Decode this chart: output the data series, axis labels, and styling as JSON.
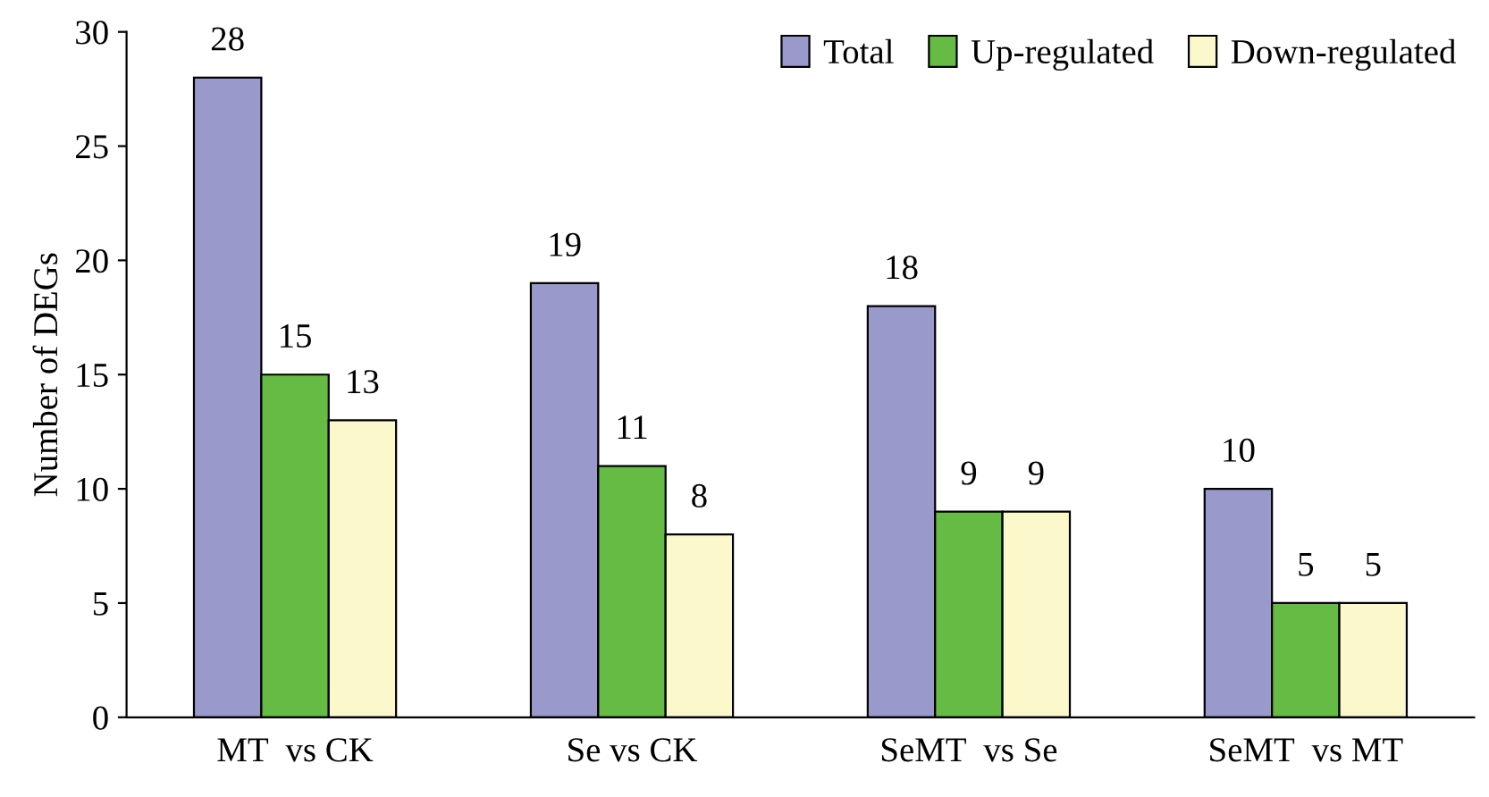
{
  "chart_data": {
    "type": "bar",
    "ylabel": "Number of DEGs",
    "categories": [
      "MT  vs CK",
      "Se vs CK",
      "SeMT  vs Se",
      "SeMT  vs MT"
    ],
    "series": [
      {
        "name": "Total",
        "color": "#9999cc",
        "values": [
          28,
          19,
          18,
          10
        ]
      },
      {
        "name": "Up-regulated",
        "color": "#66bb44",
        "values": [
          15,
          11,
          9,
          5
        ]
      },
      {
        "name": "Down-regulated",
        "color": "#fbf8cc",
        "values": [
          13,
          8,
          9,
          5
        ]
      }
    ],
    "ylim": [
      0,
      30
    ],
    "yticks": [
      0,
      5,
      10,
      15,
      20,
      25,
      30
    ],
    "data_labels": true,
    "legend": "top right",
    "grid": false
  }
}
